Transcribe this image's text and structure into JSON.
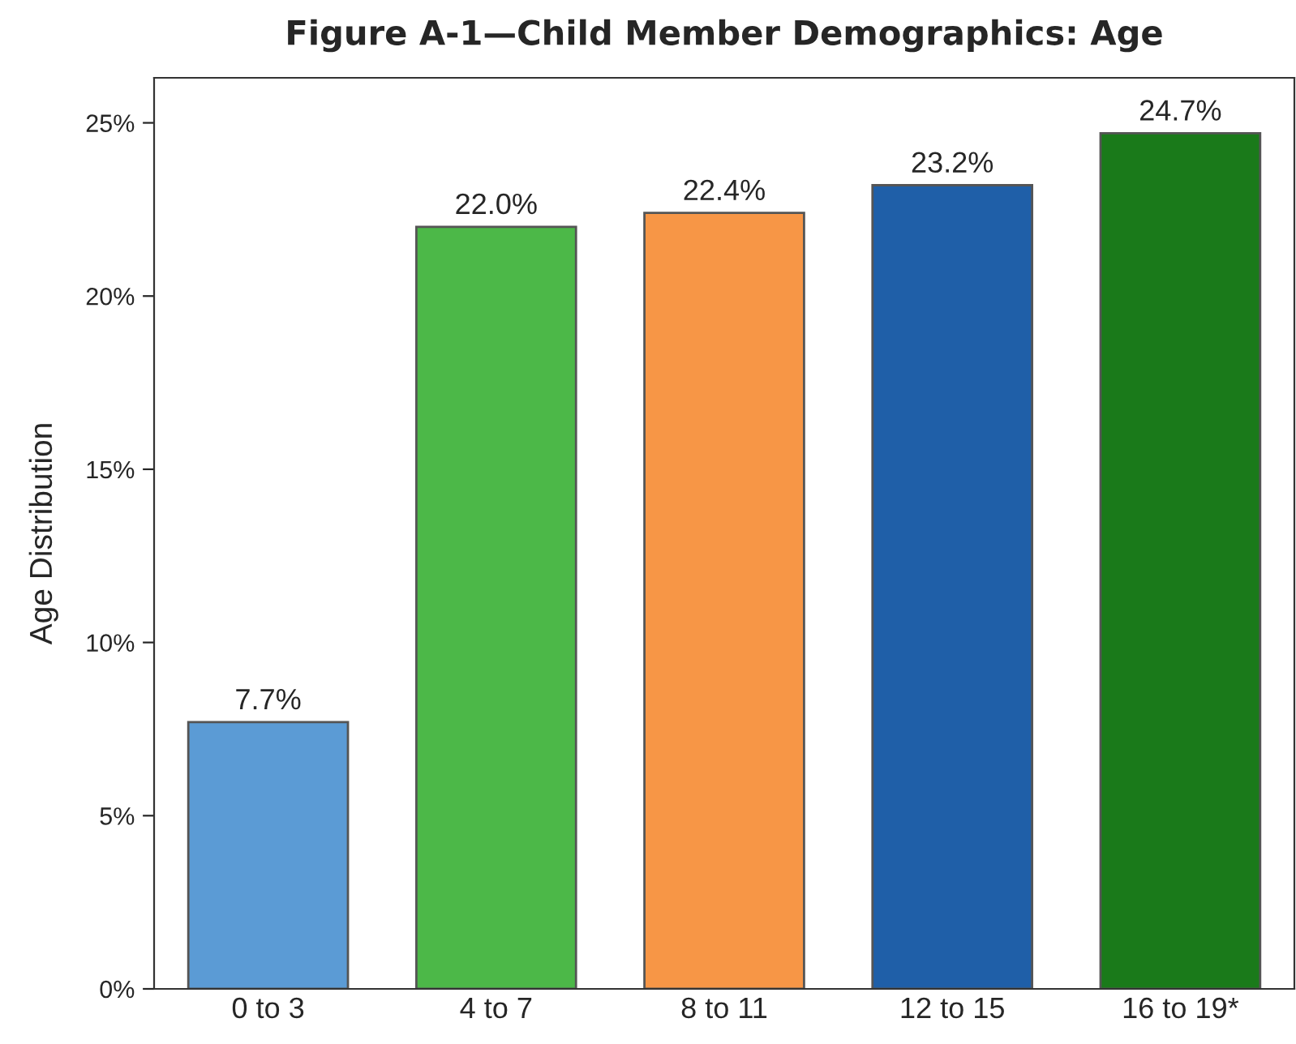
{
  "chart_data": {
    "type": "bar",
    "title": "Figure A-1—Child Member Demographics: Age",
    "ylabel": "Age Distribution",
    "categories": [
      "0 to 3",
      "4 to 7",
      "8 to 11",
      "12 to 15",
      "16 to 19*"
    ],
    "values": [
      7.7,
      22.0,
      22.4,
      23.2,
      24.7
    ],
    "colors": [
      "#5b9bd5",
      "#4cb848",
      "#f79646",
      "#1f5fa8",
      "#1a7a1a"
    ],
    "value_labels": [
      "7.7%",
      "22.0%",
      "22.4%",
      "23.2%",
      "24.7%"
    ],
    "ylim": [
      0,
      26.3
    ],
    "yticks": [
      {
        "value": 0,
        "label": "0%"
      },
      {
        "value": 5,
        "label": "5%"
      },
      {
        "value": 10,
        "label": "10%"
      },
      {
        "value": 15,
        "label": "15%"
      },
      {
        "value": 20,
        "label": "20%"
      },
      {
        "value": 25,
        "label": "25%"
      }
    ],
    "grid": false
  }
}
